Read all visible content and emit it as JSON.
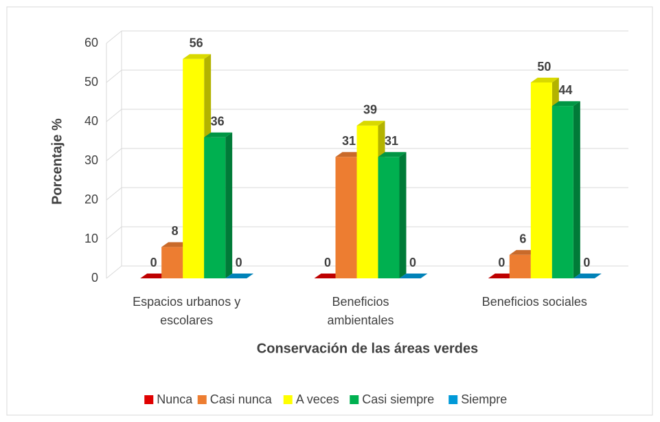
{
  "chart_data": {
    "type": "bar3d",
    "x_label": "Conservación de las áreas verdes",
    "y_label": "Porcentaje %",
    "categories": [
      "Espacios urbanos y escolares",
      "Beneficios ambientales",
      "Beneficios sociales"
    ],
    "series": [
      {
        "name": "Nunca",
        "color": "#e00000",
        "values": [
          0,
          0,
          0
        ]
      },
      {
        "name": "Casi nunca",
        "color": "#ed7d31",
        "values": [
          8,
          31,
          6
        ]
      },
      {
        "name": "A veces",
        "color": "#ffff00",
        "values": [
          56,
          39,
          50
        ]
      },
      {
        "name": "Casi siempre",
        "color": "#00b050",
        "values": [
          36,
          31,
          44
        ]
      },
      {
        "name": "Siempre",
        "color": "#0099d8",
        "values": [
          0,
          0,
          0
        ]
      }
    ],
    "ylim": [
      0,
      60
    ],
    "yticks": [
      0,
      10,
      20,
      30,
      40,
      50,
      60
    ],
    "grid": true,
    "legend": "bottom"
  }
}
